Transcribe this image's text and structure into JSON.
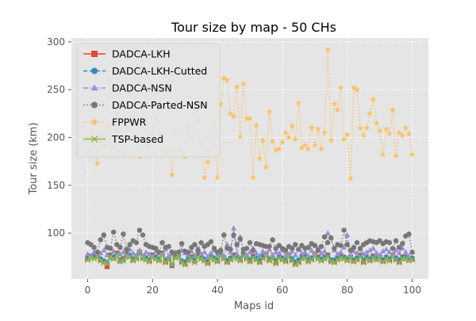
{
  "chart_data": {
    "type": "line",
    "title": "Tour size by map - 50 CHs",
    "xlabel": "Maps id",
    "ylabel": "Tour size (km)",
    "xlim": [
      -5,
      105
    ],
    "ylim": [
      52,
      304
    ],
    "x_ticks": [
      0,
      20,
      40,
      60,
      80,
      100
    ],
    "y_ticks": [
      100,
      150,
      200,
      250,
      300
    ],
    "grid": true,
    "legend_position": "upper-left",
    "background": "#e5e5e5",
    "x": [
      0,
      1,
      2,
      3,
      4,
      5,
      6,
      7,
      8,
      9,
      10,
      11,
      12,
      13,
      14,
      15,
      16,
      17,
      18,
      19,
      20,
      21,
      22,
      23,
      24,
      25,
      26,
      27,
      28,
      29,
      30,
      31,
      32,
      33,
      34,
      35,
      36,
      37,
      38,
      39,
      40,
      41,
      42,
      43,
      44,
      45,
      46,
      47,
      48,
      49,
      50,
      51,
      52,
      53,
      54,
      55,
      56,
      57,
      58,
      59,
      60,
      61,
      62,
      63,
      64,
      65,
      66,
      67,
      68,
      69,
      70,
      71,
      72,
      73,
      74,
      75,
      76,
      77,
      78,
      79,
      80,
      81,
      82,
      83,
      84,
      85,
      86,
      87,
      88,
      89,
      90,
      91,
      92,
      93,
      94,
      95,
      96,
      97,
      98,
      99,
      100
    ],
    "series": [
      {
        "name": "DADCA-LKH",
        "color": "#e24a33",
        "linestyle": "solid",
        "marker": "square",
        "values": [
          73,
          76,
          75,
          78,
          72,
          70,
          65,
          77,
          74,
          79,
          71,
          73,
          78,
          76,
          72,
          74,
          80,
          75,
          73,
          71,
          77,
          74,
          72,
          79,
          70,
          73,
          66,
          75,
          78,
          70,
          68,
          72,
          75,
          71,
          77,
          74,
          72,
          69,
          76,
          73,
          71,
          78,
          74,
          70,
          73,
          77,
          75,
          72,
          78,
          74,
          71,
          76,
          73,
          70,
          75,
          78,
          72,
          74,
          69,
          76,
          73,
          71,
          77,
          72,
          68,
          70,
          74,
          76,
          71,
          73,
          78,
          75,
          72,
          74,
          77,
          71,
          70,
          73,
          76,
          74,
          72,
          75,
          71,
          73,
          77,
          70,
          74,
          72,
          76,
          73,
          75,
          71,
          74,
          72,
          77,
          73,
          70,
          75,
          74,
          72,
          73
        ]
      },
      {
        "name": "DADCA-LKH-Cutted",
        "color": "#348abd",
        "linestyle": "dashed",
        "marker": "circle",
        "values": [
          74,
          75,
          76,
          77,
          73,
          71,
          69,
          76,
          75,
          78,
          72,
          72,
          77,
          77,
          73,
          75,
          79,
          74,
          74,
          72,
          76,
          75,
          73,
          78,
          72,
          74,
          67,
          76,
          77,
          71,
          70,
          73,
          74,
          72,
          76,
          75,
          73,
          71,
          75,
          74,
          72,
          77,
          75,
          71,
          74,
          76,
          74,
          73,
          77,
          75,
          72,
          75,
          74,
          71,
          76,
          77,
          73,
          75,
          71,
          75,
          74,
          72,
          76,
          73,
          70,
          72,
          75,
          75,
          72,
          74,
          77,
          74,
          73,
          75,
          76,
          72,
          72,
          74,
          75,
          75,
          73,
          74,
          72,
          74,
          76,
          72,
          75,
          73,
          75,
          74,
          74,
          72,
          75,
          73,
          76,
          74,
          72,
          74,
          75,
          73,
          74
        ]
      },
      {
        "name": "DADCA-NSN",
        "color": "#988ed5",
        "linestyle": "dashdot",
        "marker": "triangle",
        "values": [
          78,
          76,
          80,
          75,
          79,
          82,
          77,
          74,
          81,
          76,
          78,
          80,
          75,
          83,
          79,
          77,
          82,
          76,
          80,
          78,
          75,
          81,
          79,
          77,
          83,
          76,
          78,
          80,
          75,
          82,
          79,
          77,
          81,
          76,
          84,
          78,
          80,
          75,
          79,
          82,
          77,
          81,
          76,
          88,
          80,
          105,
          78,
          96,
          82,
          77,
          80,
          84,
          79,
          76,
          81,
          78,
          83,
          77,
          80,
          79,
          82,
          76,
          78,
          81,
          77,
          83,
          79,
          80,
          76,
          82,
          78,
          84,
          79,
          81,
          100,
          95,
          82,
          78,
          80,
          85,
          98,
          77,
          81,
          79,
          83,
          78,
          80,
          82,
          84,
          79,
          77,
          81,
          83,
          80,
          78,
          82,
          79,
          84,
          80,
          76,
          80
        ]
      },
      {
        "name": "DADCA-Parted-NSN",
        "color": "#777777",
        "linestyle": "dotted",
        "marker": "hexagon",
        "values": [
          90,
          88,
          85,
          80,
          93,
          98,
          85,
          84,
          101,
          88,
          85,
          99,
          83,
          88,
          92,
          90,
          103,
          98,
          88,
          86,
          85,
          84,
          80,
          90,
          85,
          86,
          80,
          78,
          80,
          89,
          81,
          80,
          85,
          88,
          82,
          90,
          86,
          88,
          91,
          84,
          80,
          82,
          98,
          84,
          83,
          98,
          88,
          94,
          83,
          84,
          90,
          82,
          89,
          88,
          87,
          86,
          86,
          93,
          84,
          87,
          84,
          82,
          86,
          84,
          88,
          83,
          87,
          84,
          85,
          89,
          87,
          82,
          86,
          96,
          90,
          95,
          84,
          88,
          87,
          103,
          88,
          82,
          85,
          90,
          84,
          88,
          90,
          92,
          91,
          90,
          92,
          89,
          91,
          90,
          84,
          92,
          85,
          89,
          97,
          99,
          80
        ]
      },
      {
        "name": "FPPWR",
        "color": "#fbc15e",
        "linestyle": "dotted",
        "marker": "star",
        "values": [
          200,
          205,
          192,
          173,
          195,
          192,
          210,
          215,
          190,
          225,
          200,
          182,
          210,
          215,
          200,
          200,
          180,
          235,
          218,
          192,
          205,
          220,
          215,
          200,
          188,
          184,
          161,
          208,
          187,
          188,
          180,
          210,
          200,
          215,
          218,
          193,
          158,
          174,
          185,
          215,
          158,
          235,
          262,
          260,
          225,
          222,
          253,
          201,
          256,
          220,
          220,
          158,
          213,
          178,
          197,
          169,
          227,
          196,
          187,
          188,
          195,
          205,
          200,
          212,
          198,
          236,
          189,
          192,
          188,
          210,
          192,
          209,
          188,
          205,
          292,
          197,
          235,
          229,
          252,
          198,
          203,
          157,
          252,
          250,
          210,
          202,
          210,
          225,
          240,
          215,
          207,
          182,
          209,
          204,
          229,
          181,
          205,
          202,
          210,
          204,
          182
        ]
      },
      {
        "name": "TSP-based",
        "color": "#8eba42",
        "linestyle": "solid",
        "marker": "x",
        "values": [
          72,
          74,
          73,
          76,
          71,
          69,
          68,
          75,
          73,
          77,
          70,
          71,
          76,
          75,
          71,
          73,
          78,
          73,
          72,
          70,
          75,
          73,
          71,
          77,
          69,
          72,
          67,
          74,
          76,
          69,
          67,
          71,
          73,
          69,
          75,
          73,
          71,
          68,
          74,
          72,
          70,
          76,
          73,
          69,
          72,
          75,
          73,
          71,
          76,
          73,
          70,
          74,
          72,
          69,
          73,
          76,
          71,
          73,
          68,
          74,
          72,
          70,
          75,
          71,
          67,
          69,
          73,
          74,
          70,
          72,
          76,
          73,
          71,
          73,
          75,
          70,
          69,
          72,
          74,
          73,
          71,
          73,
          70,
          72,
          75,
          69,
          73,
          71,
          74,
          72,
          73,
          70,
          73,
          71,
          75,
          72,
          69,
          73,
          73,
          71,
          72
        ]
      }
    ]
  }
}
